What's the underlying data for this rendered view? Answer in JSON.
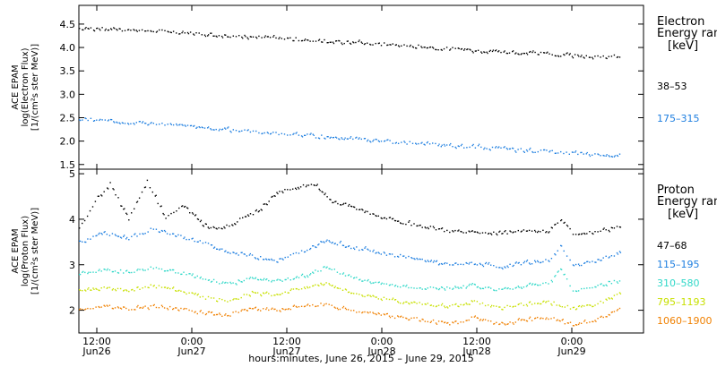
{
  "chart_data": [
    {
      "type": "scatter",
      "panel": "electron",
      "ylabel": [
        "ACE EPAM",
        "log(Electron Flux)",
        "[1/(cm²s ster MeV)]"
      ],
      "ylim": [
        1.4,
        4.9
      ],
      "yticks": [
        1.5,
        2.0,
        2.5,
        3.0,
        3.5,
        4.0,
        4.5
      ],
      "ytick_labels": [
        "1.5",
        "2.0",
        "2.5",
        "3.0",
        "3.5",
        "4.0",
        "4.5"
      ],
      "xlim": [
        0,
        91.5
      ],
      "legend": {
        "title": [
          "Electron",
          "Energy ran"
        ],
        "unit": "[keV]",
        "entries": [
          "38–53",
          "175–315"
        ]
      },
      "series": [
        {
          "name": "38–53",
          "color": "#000000",
          "x": [
            0,
            6,
            12,
            18,
            24,
            30,
            36,
            42,
            48,
            54,
            60,
            66,
            72,
            78,
            84,
            88
          ],
          "y": [
            4.42,
            4.4,
            4.37,
            4.32,
            4.27,
            4.22,
            4.18,
            4.13,
            4.09,
            4.04,
            3.98,
            3.94,
            3.9,
            3.86,
            3.82,
            3.82
          ]
        },
        {
          "name": "175–315",
          "color": "#1f7fe0",
          "x": [
            0,
            6,
            12,
            18,
            24,
            30,
            36,
            42,
            48,
            54,
            60,
            66,
            72,
            78,
            84,
            88
          ],
          "y": [
            2.48,
            2.43,
            2.38,
            2.32,
            2.26,
            2.2,
            2.14,
            2.08,
            2.02,
            1.97,
            1.92,
            1.87,
            1.82,
            1.77,
            1.73,
            1.7
          ]
        }
      ]
    },
    {
      "type": "scatter",
      "panel": "proton",
      "ylabel": [
        "ACE EPAM",
        "log(Proton Flux)",
        "[1/(cm²s ster MeV)]"
      ],
      "ylim": [
        1.5,
        5.1
      ],
      "yticks": [
        2,
        3,
        4,
        5
      ],
      "ytick_labels": [
        "2",
        "3",
        "4",
        "5"
      ],
      "xlim": [
        0,
        91.5
      ],
      "legend": {
        "title": [
          "Proton",
          "Energy ran"
        ],
        "unit": "[keV]",
        "entries": [
          "47–68",
          "115–195",
          "310–580",
          "795–1193",
          "1060–1900"
        ]
      },
      "series": [
        {
          "name": "47–68",
          "color": "#000000",
          "x": [
            0,
            3,
            5,
            8,
            11,
            14,
            17,
            20,
            23,
            26,
            29,
            32,
            35,
            38,
            41,
            44,
            48,
            52,
            56,
            60,
            64,
            68,
            72,
            76,
            78,
            80,
            84,
            88
          ],
          "y": [
            3.8,
            4.5,
            4.8,
            4.0,
            4.85,
            4.05,
            4.3,
            3.9,
            3.8,
            4.0,
            4.2,
            4.6,
            4.7,
            4.8,
            4.4,
            4.3,
            4.1,
            3.95,
            3.85,
            3.75,
            3.75,
            3.7,
            3.75,
            3.75,
            4.0,
            3.7,
            3.75,
            3.85
          ]
        },
        {
          "name": "115–195",
          "color": "#1f7fe0",
          "x": [
            0,
            4,
            8,
            12,
            16,
            20,
            24,
            28,
            32,
            36,
            40,
            44,
            48,
            52,
            56,
            60,
            64,
            68,
            72,
            76,
            78,
            80,
            84,
            88
          ],
          "y": [
            3.5,
            3.7,
            3.6,
            3.8,
            3.65,
            3.5,
            3.3,
            3.2,
            3.1,
            3.3,
            3.55,
            3.4,
            3.3,
            3.2,
            3.1,
            3.0,
            3.05,
            2.95,
            3.05,
            3.1,
            3.4,
            3.0,
            3.1,
            3.3
          ]
        },
        {
          "name": "310–580",
          "color": "#30d8c8",
          "x": [
            0,
            4,
            8,
            12,
            16,
            20,
            24,
            28,
            32,
            36,
            40,
            44,
            48,
            52,
            56,
            60,
            64,
            68,
            72,
            76,
            78,
            80,
            84,
            88
          ],
          "y": [
            2.8,
            2.9,
            2.85,
            2.95,
            2.85,
            2.7,
            2.6,
            2.7,
            2.65,
            2.75,
            2.95,
            2.75,
            2.6,
            2.55,
            2.5,
            2.5,
            2.55,
            2.45,
            2.55,
            2.6,
            2.9,
            2.45,
            2.55,
            2.7
          ]
        },
        {
          "name": "795–1193",
          "color": "#c8e000",
          "x": [
            0,
            4,
            8,
            12,
            16,
            20,
            24,
            28,
            32,
            36,
            40,
            44,
            48,
            52,
            56,
            60,
            64,
            68,
            72,
            76,
            80,
            84,
            88
          ],
          "y": [
            2.45,
            2.5,
            2.45,
            2.55,
            2.45,
            2.3,
            2.2,
            2.4,
            2.35,
            2.5,
            2.6,
            2.4,
            2.3,
            2.2,
            2.15,
            2.1,
            2.2,
            2.05,
            2.15,
            2.2,
            2.05,
            2.15,
            2.4
          ]
        },
        {
          "name": "1060–1900",
          "color": "#f08000",
          "x": [
            0,
            4,
            8,
            12,
            16,
            20,
            24,
            28,
            32,
            36,
            40,
            44,
            48,
            52,
            56,
            60,
            64,
            68,
            72,
            76,
            80,
            84,
            88
          ],
          "y": [
            2.05,
            2.1,
            2.05,
            2.1,
            2.05,
            1.95,
            1.9,
            2.05,
            2.0,
            2.1,
            2.15,
            2.0,
            1.95,
            1.85,
            1.8,
            1.7,
            1.85,
            1.7,
            1.8,
            1.85,
            1.7,
            1.8,
            2.05
          ]
        }
      ]
    }
  ],
  "x_axis": {
    "ticks": [
      {
        "x": 0,
        "time": "12:00",
        "date": "Jun26"
      },
      {
        "x": 24,
        "time": "0:00",
        "date": "Jun27"
      },
      {
        "x": 48,
        "time": "12:00",
        "date": "Jun27"
      },
      {
        "x": 72,
        "time": "0:00",
        "date": "Jun28"
      },
      {
        "x": 96,
        "time": "12:00",
        "date": "Jun28"
      },
      {
        "x": 120,
        "time": "0:00",
        "date": "Jun29"
      }
    ],
    "label": "hours:minutes, June 26, 2015 – June 29, 2015"
  }
}
